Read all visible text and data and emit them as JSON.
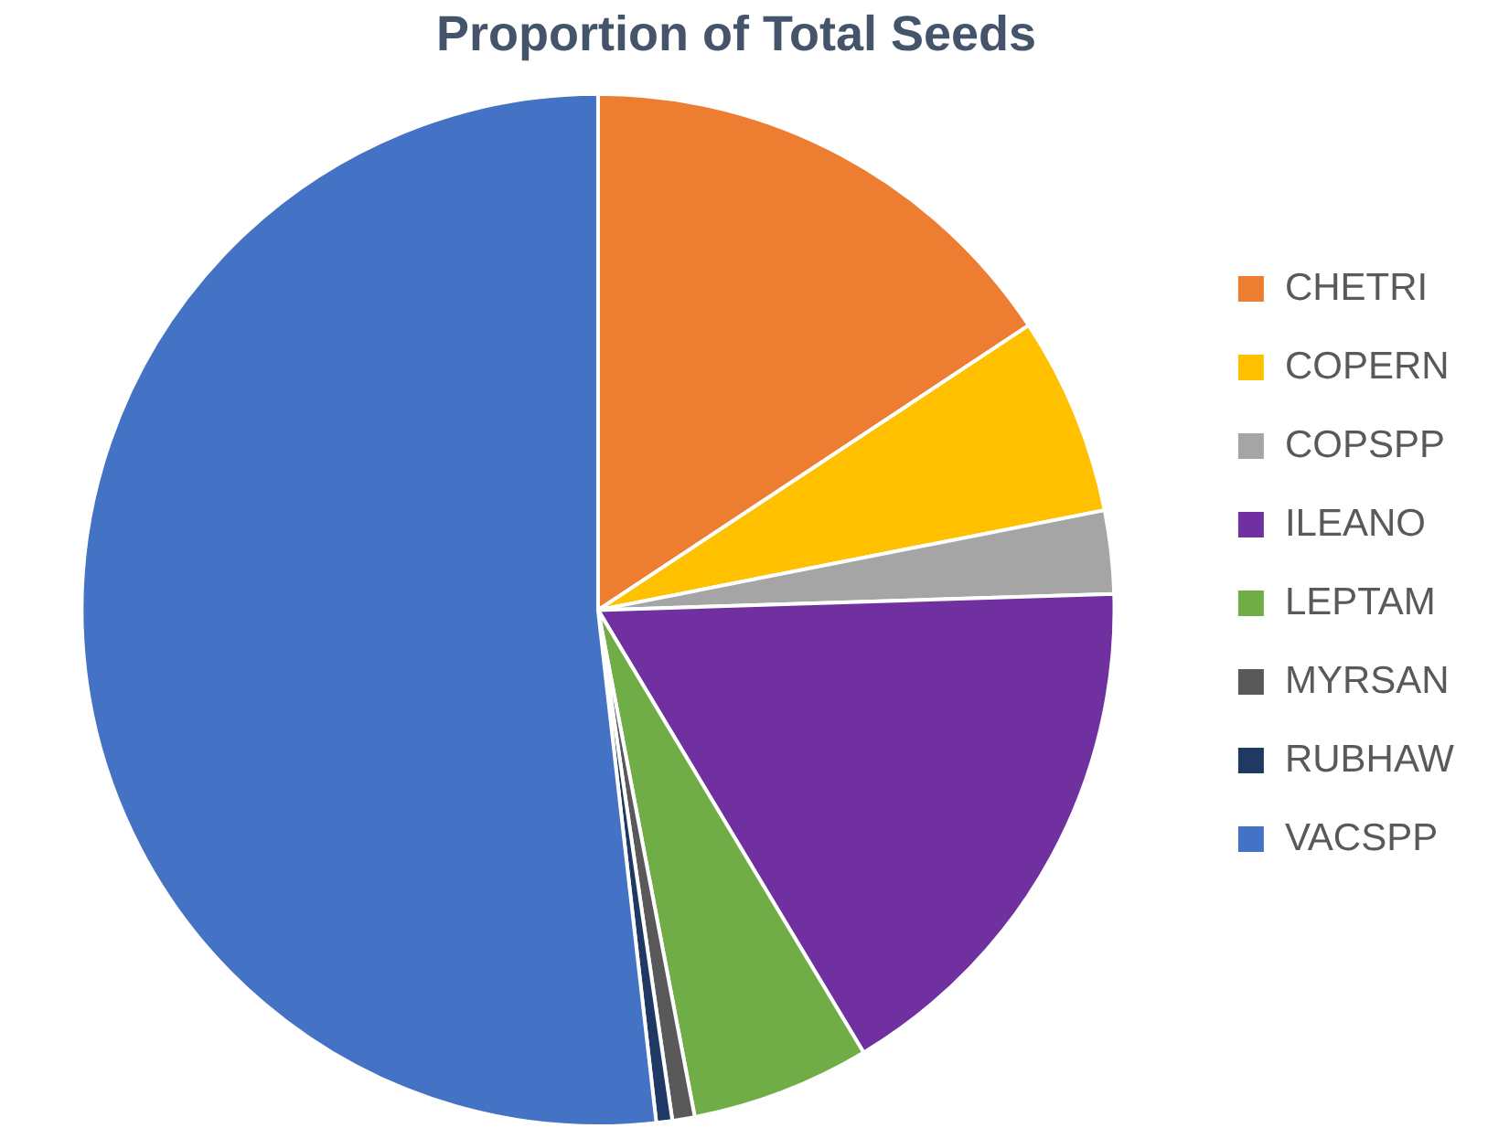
{
  "chart_data": {
    "type": "pie",
    "title": "Proportion of Total Seeds",
    "categories": [
      "CHETRI",
      "COPERN",
      "COPSPP",
      "ILEANO",
      "LEPTAM",
      "MYRSAN",
      "RUBHAW",
      "VACSPP"
    ],
    "values": [
      15.7,
      6.2,
      2.6,
      16.9,
      5.6,
      0.7,
      0.5,
      51.8
    ],
    "colors": [
      "#ed7d31",
      "#ffc000",
      "#a5a5a5",
      "#7030a0",
      "#70ad47",
      "#595959",
      "#203864",
      "#4472c4"
    ],
    "legend": "right"
  }
}
